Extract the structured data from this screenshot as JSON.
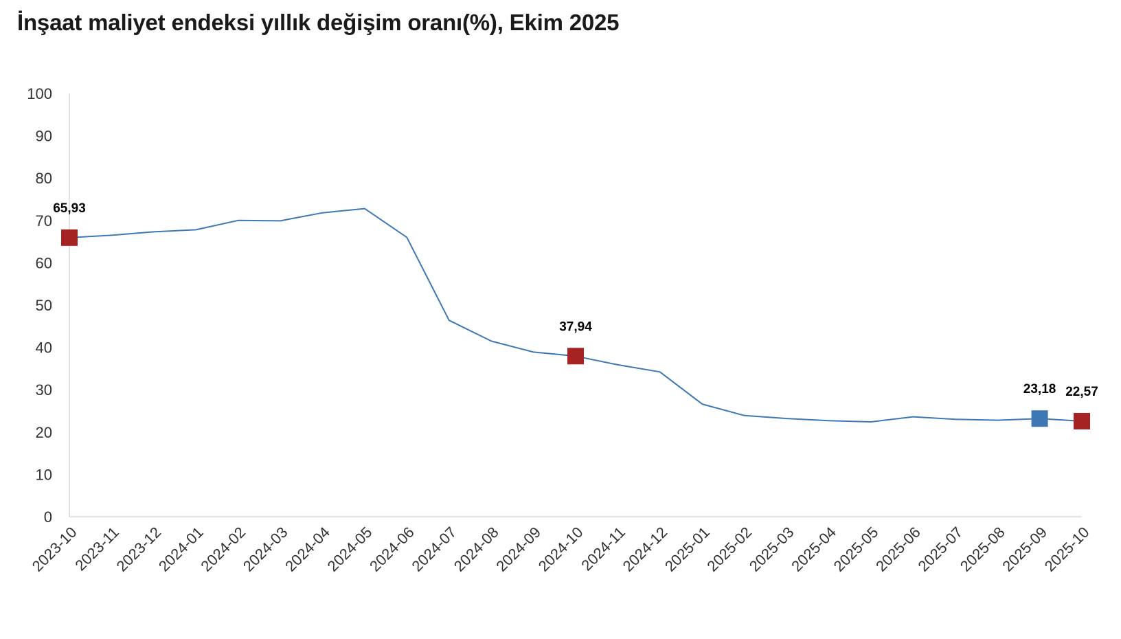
{
  "chart_data": {
    "type": "line",
    "title": "İnşaat maliyet endeksi yıllık değişim oranı(%), Ekim 2025",
    "xlabel": "",
    "ylabel": "",
    "ylim": [
      0,
      100
    ],
    "yticks": [
      0,
      10,
      20,
      30,
      40,
      50,
      60,
      70,
      80,
      90,
      100
    ],
    "grid": false,
    "categories": [
      "2023-10",
      "2023-11",
      "2023-12",
      "2024-01",
      "2024-02",
      "2024-03",
      "2024-04",
      "2024-05",
      "2024-06",
      "2024-07",
      "2024-08",
      "2024-09",
      "2024-10",
      "2024-11",
      "2024-12",
      "2025-01",
      "2025-02",
      "2025-03",
      "2025-04",
      "2025-05",
      "2025-06",
      "2025-07",
      "2025-08",
      "2025-09",
      "2025-10"
    ],
    "series": [
      {
        "color": "#3d78b5",
        "values": [
          65.93,
          66.5,
          67.3,
          67.8,
          70.0,
          69.9,
          71.8,
          72.8,
          66.0,
          46.4,
          41.5,
          38.9,
          37.94,
          35.9,
          34.2,
          26.6,
          23.9,
          23.2,
          22.7,
          22.4,
          23.6,
          23.0,
          22.8,
          23.18,
          22.57
        ]
      }
    ],
    "highlighted_points": [
      {
        "index": 0,
        "label": "65,93",
        "color": "#a52323"
      },
      {
        "index": 12,
        "label": "37,94",
        "color": "#a52323"
      },
      {
        "index": 23,
        "label": "23,18",
        "color": "#3d78b5"
      },
      {
        "index": 24,
        "label": "22,57",
        "color": "#a52323"
      }
    ]
  }
}
